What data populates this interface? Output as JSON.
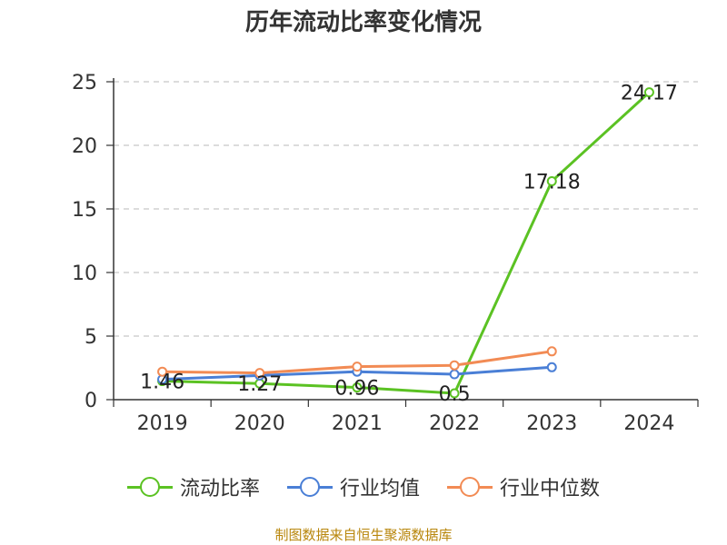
{
  "chart_data": {
    "type": "line",
    "title": "历年流动比率变化情况",
    "categories": [
      "2019",
      "2020",
      "2021",
      "2022",
      "2023",
      "2024"
    ],
    "y_ticks": [
      "0",
      "5",
      "10",
      "15",
      "20",
      "25"
    ],
    "ylim": [
      0,
      25
    ],
    "grid": true,
    "legend_position": "bottom",
    "series": [
      {
        "name": "流动比率",
        "color": "#5bc223",
        "values": [
          1.46,
          1.27,
          0.96,
          0.5,
          17.18,
          24.17
        ],
        "labels": [
          "1.46",
          "1.27",
          "0.96",
          "0.5",
          "17.18",
          "24.17"
        ]
      },
      {
        "name": "行业均值",
        "color": "#4a7fd6",
        "values": [
          1.6,
          1.9,
          2.2,
          2.0,
          2.55,
          null
        ]
      },
      {
        "name": "行业中位数",
        "color": "#f28b54",
        "values": [
          2.2,
          2.1,
          2.6,
          2.7,
          3.8,
          null
        ]
      }
    ]
  },
  "source": "制图数据来自恒生聚源数据库"
}
